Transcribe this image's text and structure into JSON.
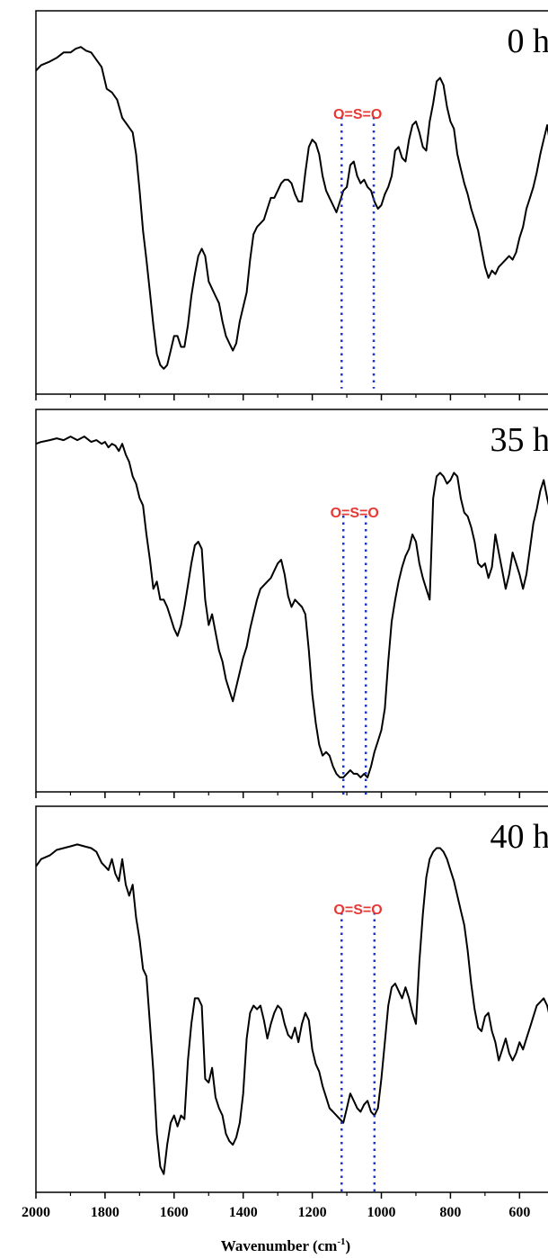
{
  "chart_data": {
    "type": "line",
    "x_axis": {
      "label_main": "Wavenumber (cm",
      "label_sup": "-1",
      "label_close": ")",
      "xlim": [
        2000,
        515
      ],
      "tick_values": [
        2000,
        1800,
        1600,
        1400,
        1200,
        1000,
        800,
        600
      ],
      "tick_labels": [
        "2000",
        "1800",
        "1600",
        "1400",
        "1200",
        "1000",
        "800",
        "600"
      ],
      "minor_tick_values": [
        1900,
        1700,
        1500,
        1300,
        1100,
        900,
        700
      ]
    },
    "panels": [
      {
        "tag": "0 h",
        "annotation": "O=S=O",
        "marker_x": [
          1115,
          1022
        ],
        "series": {
          "x": [
            2000,
            1985,
            1960,
            1940,
            1920,
            1900,
            1885,
            1870,
            1855,
            1840,
            1825,
            1810,
            1795,
            1780,
            1765,
            1750,
            1735,
            1720,
            1710,
            1700,
            1690,
            1680,
            1670,
            1660,
            1650,
            1640,
            1630,
            1620,
            1610,
            1600,
            1590,
            1580,
            1570,
            1560,
            1550,
            1540,
            1530,
            1520,
            1510,
            1500,
            1490,
            1480,
            1470,
            1460,
            1450,
            1440,
            1430,
            1420,
            1410,
            1400,
            1390,
            1380,
            1370,
            1360,
            1350,
            1340,
            1330,
            1320,
            1310,
            1300,
            1290,
            1280,
            1270,
            1260,
            1250,
            1240,
            1230,
            1220,
            1210,
            1200,
            1190,
            1180,
            1170,
            1160,
            1150,
            1140,
            1130,
            1120,
            1110,
            1100,
            1090,
            1080,
            1070,
            1060,
            1050,
            1040,
            1030,
            1020,
            1010,
            1000,
            990,
            980,
            970,
            960,
            950,
            940,
            930,
            920,
            910,
            900,
            890,
            880,
            870,
            860,
            850,
            840,
            830,
            820,
            810,
            800,
            790,
            780,
            770,
            760,
            750,
            740,
            730,
            720,
            710,
            700,
            690,
            680,
            670,
            660,
            650,
            640,
            630,
            620,
            610,
            600,
            590,
            580,
            570,
            560,
            550,
            540,
            530,
            520,
            515
          ],
          "y": [
            0.88,
            0.895,
            0.905,
            0.915,
            0.93,
            0.93,
            0.94,
            0.945,
            0.935,
            0.93,
            0.91,
            0.89,
            0.83,
            0.82,
            0.8,
            0.75,
            0.73,
            0.71,
            0.65,
            0.55,
            0.44,
            0.36,
            0.27,
            0.18,
            0.1,
            0.07,
            0.06,
            0.07,
            0.11,
            0.15,
            0.15,
            0.12,
            0.12,
            0.18,
            0.26,
            0.32,
            0.37,
            0.39,
            0.37,
            0.3,
            0.28,
            0.26,
            0.24,
            0.19,
            0.15,
            0.13,
            0.11,
            0.13,
            0.19,
            0.23,
            0.27,
            0.36,
            0.43,
            0.45,
            0.46,
            0.47,
            0.5,
            0.53,
            0.53,
            0.55,
            0.57,
            0.58,
            0.58,
            0.57,
            0.54,
            0.52,
            0.52,
            0.6,
            0.67,
            0.69,
            0.68,
            0.65,
            0.59,
            0.55,
            0.53,
            0.51,
            0.49,
            0.52,
            0.55,
            0.56,
            0.62,
            0.63,
            0.59,
            0.57,
            0.58,
            0.56,
            0.55,
            0.52,
            0.5,
            0.51,
            0.54,
            0.56,
            0.59,
            0.66,
            0.67,
            0.64,
            0.63,
            0.69,
            0.73,
            0.74,
            0.71,
            0.67,
            0.66,
            0.74,
            0.79,
            0.85,
            0.86,
            0.84,
            0.78,
            0.74,
            0.72,
            0.65,
            0.61,
            0.57,
            0.54,
            0.5,
            0.47,
            0.44,
            0.39,
            0.34,
            0.31,
            0.33,
            0.32,
            0.34,
            0.35,
            0.36,
            0.37,
            0.36,
            0.38,
            0.42,
            0.45,
            0.5,
            0.53,
            0.56,
            0.6,
            0.65,
            0.69,
            0.73,
            0.7
          ]
        }
      },
      {
        "tag": "35 h",
        "annotation": "O=S=O",
        "marker_x": [
          1110,
          1045
        ],
        "series": {
          "x": [
            2000,
            1985,
            1960,
            1940,
            1920,
            1900,
            1880,
            1860,
            1840,
            1825,
            1810,
            1800,
            1790,
            1780,
            1770,
            1760,
            1750,
            1740,
            1730,
            1720,
            1710,
            1700,
            1690,
            1680,
            1670,
            1660,
            1650,
            1640,
            1630,
            1620,
            1610,
            1600,
            1590,
            1580,
            1570,
            1560,
            1550,
            1540,
            1530,
            1520,
            1510,
            1500,
            1490,
            1480,
            1470,
            1460,
            1450,
            1440,
            1430,
            1420,
            1410,
            1400,
            1390,
            1380,
            1370,
            1360,
            1350,
            1340,
            1330,
            1320,
            1310,
            1300,
            1290,
            1280,
            1270,
            1260,
            1250,
            1240,
            1230,
            1220,
            1210,
            1200,
            1190,
            1180,
            1170,
            1160,
            1150,
            1140,
            1130,
            1120,
            1110,
            1100,
            1090,
            1080,
            1070,
            1060,
            1050,
            1040,
            1030,
            1020,
            1010,
            1000,
            990,
            980,
            970,
            960,
            950,
            940,
            930,
            920,
            910,
            900,
            890,
            880,
            870,
            860,
            850,
            840,
            830,
            820,
            810,
            800,
            790,
            780,
            770,
            760,
            750,
            740,
            730,
            720,
            710,
            700,
            690,
            680,
            670,
            660,
            650,
            640,
            630,
            620,
            610,
            600,
            590,
            580,
            570,
            560,
            550,
            540,
            530,
            520,
            515
          ],
          "y": [
            0.95,
            0.955,
            0.96,
            0.965,
            0.96,
            0.97,
            0.96,
            0.97,
            0.955,
            0.96,
            0.95,
            0.955,
            0.94,
            0.95,
            0.945,
            0.93,
            0.95,
            0.92,
            0.9,
            0.86,
            0.84,
            0.8,
            0.78,
            0.7,
            0.63,
            0.55,
            0.57,
            0.52,
            0.52,
            0.5,
            0.47,
            0.44,
            0.42,
            0.45,
            0.5,
            0.56,
            0.62,
            0.67,
            0.68,
            0.66,
            0.52,
            0.45,
            0.48,
            0.43,
            0.38,
            0.35,
            0.3,
            0.27,
            0.24,
            0.28,
            0.32,
            0.36,
            0.39,
            0.44,
            0.48,
            0.52,
            0.55,
            0.56,
            0.57,
            0.58,
            0.6,
            0.62,
            0.63,
            0.59,
            0.53,
            0.5,
            0.52,
            0.51,
            0.5,
            0.48,
            0.38,
            0.26,
            0.18,
            0.12,
            0.09,
            0.1,
            0.09,
            0.06,
            0.04,
            0.03,
            0.03,
            0.04,
            0.05,
            0.04,
            0.04,
            0.03,
            0.04,
            0.03,
            0.06,
            0.1,
            0.13,
            0.16,
            0.22,
            0.35,
            0.46,
            0.52,
            0.57,
            0.61,
            0.64,
            0.66,
            0.7,
            0.68,
            0.62,
            0.58,
            0.55,
            0.52,
            0.8,
            0.86,
            0.87,
            0.86,
            0.84,
            0.85,
            0.87,
            0.86,
            0.8,
            0.76,
            0.75,
            0.72,
            0.68,
            0.62,
            0.61,
            0.62,
            0.58,
            0.61,
            0.7,
            0.65,
            0.6,
            0.55,
            0.59,
            0.65,
            0.62,
            0.59,
            0.55,
            0.59,
            0.66,
            0.73,
            0.77,
            0.82,
            0.85,
            0.8,
            0.78
          ]
        }
      },
      {
        "tag": "40 h",
        "annotation": "O=S=O",
        "marker_x": [
          1115,
          1020
        ],
        "series": {
          "x": [
            2000,
            1985,
            1960,
            1940,
            1920,
            1900,
            1880,
            1860,
            1840,
            1825,
            1810,
            1800,
            1790,
            1780,
            1770,
            1760,
            1750,
            1740,
            1730,
            1720,
            1710,
            1700,
            1690,
            1680,
            1670,
            1660,
            1650,
            1640,
            1630,
            1620,
            1610,
            1600,
            1590,
            1580,
            1570,
            1560,
            1550,
            1540,
            1530,
            1520,
            1510,
            1500,
            1490,
            1480,
            1470,
            1460,
            1450,
            1440,
            1430,
            1420,
            1410,
            1400,
            1390,
            1380,
            1370,
            1360,
            1350,
            1340,
            1330,
            1320,
            1310,
            1300,
            1290,
            1280,
            1270,
            1260,
            1250,
            1240,
            1230,
            1220,
            1210,
            1200,
            1190,
            1180,
            1170,
            1160,
            1150,
            1140,
            1130,
            1120,
            1110,
            1100,
            1090,
            1080,
            1070,
            1060,
            1050,
            1040,
            1030,
            1020,
            1010,
            1000,
            990,
            980,
            970,
            960,
            950,
            940,
            930,
            920,
            910,
            900,
            890,
            880,
            870,
            860,
            850,
            840,
            830,
            820,
            810,
            800,
            790,
            780,
            770,
            760,
            750,
            740,
            730,
            720,
            710,
            700,
            690,
            680,
            670,
            660,
            650,
            640,
            630,
            620,
            610,
            600,
            590,
            580,
            570,
            560,
            550,
            540,
            530,
            520,
            515
          ],
          "y": [
            0.88,
            0.9,
            0.91,
            0.925,
            0.93,
            0.935,
            0.94,
            0.935,
            0.93,
            0.92,
            0.89,
            0.88,
            0.87,
            0.9,
            0.86,
            0.84,
            0.9,
            0.83,
            0.8,
            0.83,
            0.74,
            0.68,
            0.6,
            0.58,
            0.45,
            0.32,
            0.15,
            0.06,
            0.04,
            0.12,
            0.18,
            0.2,
            0.17,
            0.2,
            0.19,
            0.35,
            0.45,
            0.52,
            0.52,
            0.5,
            0.3,
            0.29,
            0.33,
            0.25,
            0.22,
            0.2,
            0.15,
            0.13,
            0.12,
            0.14,
            0.18,
            0.26,
            0.41,
            0.48,
            0.5,
            0.49,
            0.5,
            0.46,
            0.41,
            0.45,
            0.48,
            0.5,
            0.49,
            0.45,
            0.42,
            0.41,
            0.44,
            0.4,
            0.45,
            0.48,
            0.46,
            0.38,
            0.34,
            0.32,
            0.28,
            0.25,
            0.22,
            0.21,
            0.2,
            0.19,
            0.18,
            0.22,
            0.26,
            0.24,
            0.22,
            0.21,
            0.23,
            0.24,
            0.21,
            0.2,
            0.22,
            0.3,
            0.4,
            0.5,
            0.55,
            0.56,
            0.54,
            0.52,
            0.55,
            0.52,
            0.48,
            0.45,
            0.62,
            0.75,
            0.85,
            0.9,
            0.92,
            0.93,
            0.93,
            0.92,
            0.9,
            0.87,
            0.84,
            0.8,
            0.76,
            0.72,
            0.65,
            0.56,
            0.49,
            0.44,
            0.43,
            0.47,
            0.48,
            0.43,
            0.4,
            0.35,
            0.38,
            0.41,
            0.37,
            0.35,
            0.37,
            0.4,
            0.38,
            0.41,
            0.44,
            0.47,
            0.5,
            0.51,
            0.52,
            0.5,
            0.48
          ]
        }
      }
    ]
  }
}
